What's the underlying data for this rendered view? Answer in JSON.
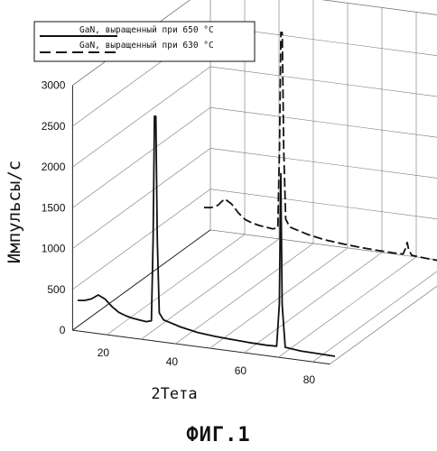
{
  "chart_data": {
    "type": "line",
    "subtype": "3d-offset-line",
    "xlabel": "2Тета",
    "ylabel": "Импульсы/с",
    "caption": "ФИГ.1",
    "ylim": [
      0,
      3000
    ],
    "yticks": [
      "0",
      "500",
      "1000",
      "1500",
      "2000",
      "2500",
      "3000"
    ],
    "xticks": [
      "20",
      "40",
      "60",
      "80"
    ],
    "xlim": [
      10,
      85
    ],
    "grid": true,
    "legend_position": "top-left",
    "series": [
      {
        "name": "GaN, выращенный при 650 °C",
        "style": "solid",
        "color": "#111111",
        "points": [
          [
            10,
            320
          ],
          [
            12,
            330
          ],
          [
            14,
            360
          ],
          [
            16,
            420
          ],
          [
            18,
            380
          ],
          [
            20,
            300
          ],
          [
            22,
            240
          ],
          [
            24,
            210
          ],
          [
            26,
            190
          ],
          [
            28,
            180
          ],
          [
            30,
            170
          ],
          [
            31.5,
            190
          ],
          [
            32,
            1200
          ],
          [
            32.4,
            2700
          ],
          [
            32.8,
            2700
          ],
          [
            33.2,
            1200
          ],
          [
            33.8,
            300
          ],
          [
            35,
            220
          ],
          [
            40,
            160
          ],
          [
            45,
            120
          ],
          [
            50,
            100
          ],
          [
            55,
            90
          ],
          [
            60,
            80
          ],
          [
            65,
            75
          ],
          [
            68,
            80
          ],
          [
            68.8,
            600
          ],
          [
            69.2,
            2200
          ],
          [
            69.6,
            600
          ],
          [
            70.5,
            80
          ],
          [
            75,
            60
          ],
          [
            80,
            55
          ],
          [
            85,
            50
          ]
        ]
      },
      {
        "name": "GaN, выращенный при 630 °C",
        "style": "dashed",
        "color": "#111111",
        "points": [
          [
            10,
            330
          ],
          [
            12,
            340
          ],
          [
            14,
            380
          ],
          [
            16,
            470
          ],
          [
            18,
            420
          ],
          [
            20,
            320
          ],
          [
            22,
            250
          ],
          [
            24,
            220
          ],
          [
            26,
            200
          ],
          [
            28,
            190
          ],
          [
            30,
            180
          ],
          [
            31.5,
            200
          ],
          [
            32,
            1200
          ],
          [
            32.4,
            2600
          ],
          [
            32.8,
            2600
          ],
          [
            33.2,
            1200
          ],
          [
            33.8,
            320
          ],
          [
            35,
            230
          ],
          [
            40,
            170
          ],
          [
            45,
            130
          ],
          [
            50,
            110
          ],
          [
            55,
            95
          ],
          [
            60,
            85
          ],
          [
            65,
            80
          ],
          [
            68,
            82
          ],
          [
            68.8,
            160
          ],
          [
            69.2,
            230
          ],
          [
            69.6,
            150
          ],
          [
            70.5,
            80
          ],
          [
            75,
            65
          ],
          [
            80,
            55
          ],
          [
            85,
            50
          ]
        ]
      }
    ]
  }
}
